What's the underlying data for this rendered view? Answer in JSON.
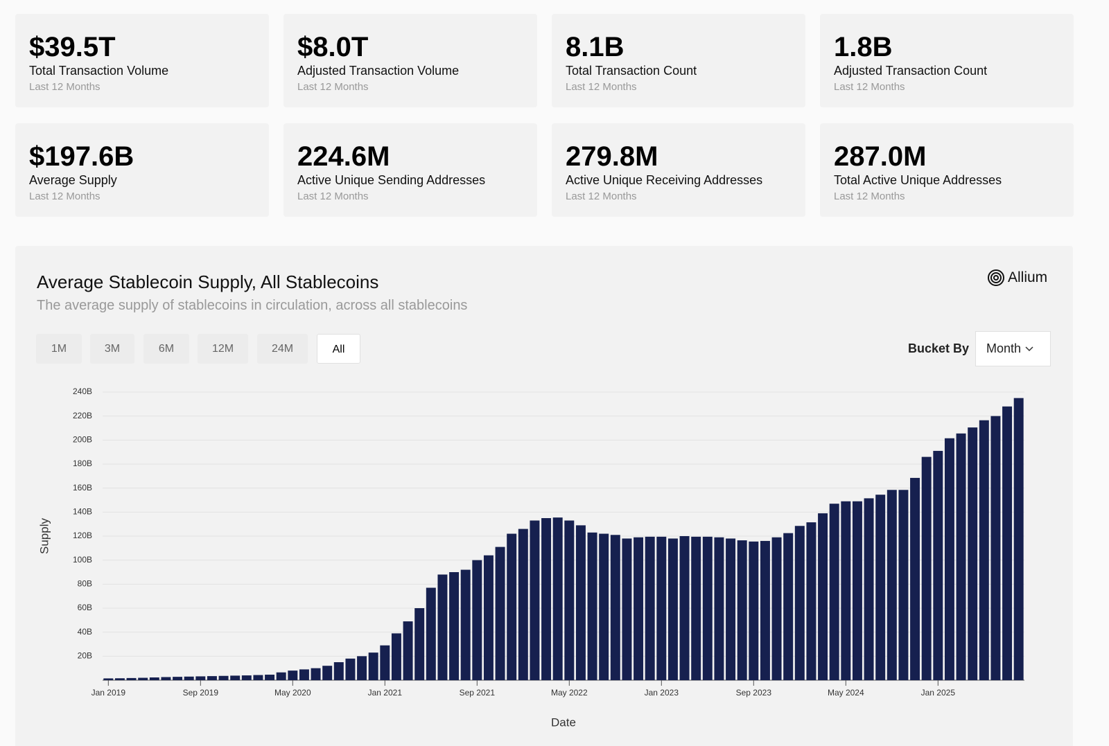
{
  "stats": [
    {
      "value": "$39.5T",
      "label": "Total Transaction Volume",
      "period": "Last 12 Months"
    },
    {
      "value": "$8.0T",
      "label": "Adjusted Transaction Volume",
      "period": "Last 12 Months"
    },
    {
      "value": "8.1B",
      "label": "Total Transaction Count",
      "period": "Last 12 Months"
    },
    {
      "value": "1.8B",
      "label": "Adjusted Transaction Count",
      "period": "Last 12 Months"
    },
    {
      "value": "$197.6B",
      "label": "Average Supply",
      "period": "Last 12 Months"
    },
    {
      "value": "224.6M",
      "label": "Active Unique Sending Addresses",
      "period": "Last 12 Months"
    },
    {
      "value": "279.8M",
      "label": "Active Unique Receiving Addresses",
      "period": "Last 12 Months"
    },
    {
      "value": "287.0M",
      "label": "Total Active Unique Addresses",
      "period": "Last 12 Months"
    }
  ],
  "panel": {
    "logo": "Allium",
    "ranges": [
      "1M",
      "3M",
      "6M",
      "12M",
      "24M",
      "All"
    ],
    "bucket_label": "Bucket By",
    "bucket_value": "Month"
  },
  "chart_data": {
    "type": "bar",
    "title": "Average Stablecoin Supply, All Stablecoins",
    "subtitle": "The average supply of stablecoins in circulation, across all stablecoins",
    "x_label": "Date",
    "y_label": "Supply",
    "categories": [
      "Jan 2019",
      null,
      null,
      null,
      null,
      null,
      null,
      null,
      "Sep 2019",
      null,
      null,
      null,
      null,
      null,
      null,
      null,
      "May 2020",
      null,
      null,
      null,
      null,
      null,
      null,
      null,
      "Jan 2021",
      null,
      null,
      null,
      null,
      null,
      null,
      null,
      "Sep 2021",
      null,
      null,
      null,
      null,
      null,
      null,
      null,
      "May 2022",
      null,
      null,
      null,
      null,
      null,
      null,
      null,
      "Jan 2023",
      null,
      null,
      null,
      null,
      null,
      null,
      null,
      "Sep 2023",
      null,
      null,
      null,
      null,
      null,
      null,
      null,
      "May 2024",
      null,
      null,
      null,
      null,
      null,
      null,
      null,
      "Jan 2025",
      null,
      null,
      null,
      null,
      null,
      null,
      null
    ],
    "values": [
      1.5,
      1.6,
      1.8,
      2.0,
      2.3,
      2.6,
      2.8,
      3.0,
      3.2,
      3.4,
      3.6,
      3.8,
      4.0,
      4.3,
      4.6,
      6.5,
      8,
      9,
      10,
      12,
      15,
      18,
      20,
      23,
      29,
      39,
      49,
      60,
      77,
      88,
      90,
      92,
      100,
      104,
      111,
      122,
      126,
      133,
      135,
      135.5,
      133,
      129,
      123,
      122,
      121,
      118,
      119,
      119.5,
      119.5,
      118,
      120,
      119.5,
      119.5,
      119,
      118,
      116.5,
      115.5,
      116,
      119,
      122.5,
      128.5,
      131.5,
      139,
      147,
      149,
      149,
      151.5,
      154.5,
      158.5,
      158.5,
      168.5,
      186,
      191,
      201.5,
      205.5,
      210.5,
      216.5,
      220,
      228,
      235
    ],
    "color": "#16204f",
    "ylim": [
      0,
      240
    ],
    "yticks": [
      {
        "value": 20,
        "label": "20B"
      },
      {
        "value": 40,
        "label": "40B"
      },
      {
        "value": 60,
        "label": "60B"
      },
      {
        "value": 80,
        "label": "80B"
      },
      {
        "value": 100,
        "label": "100B"
      },
      {
        "value": 120,
        "label": "120B"
      },
      {
        "value": 140,
        "label": "140B"
      },
      {
        "value": 160,
        "label": "160B"
      },
      {
        "value": 180,
        "label": "180B"
      },
      {
        "value": 200,
        "label": "200B"
      },
      {
        "value": 220,
        "label": "220B"
      },
      {
        "value": 240,
        "label": "240B"
      }
    ],
    "grid": true
  }
}
